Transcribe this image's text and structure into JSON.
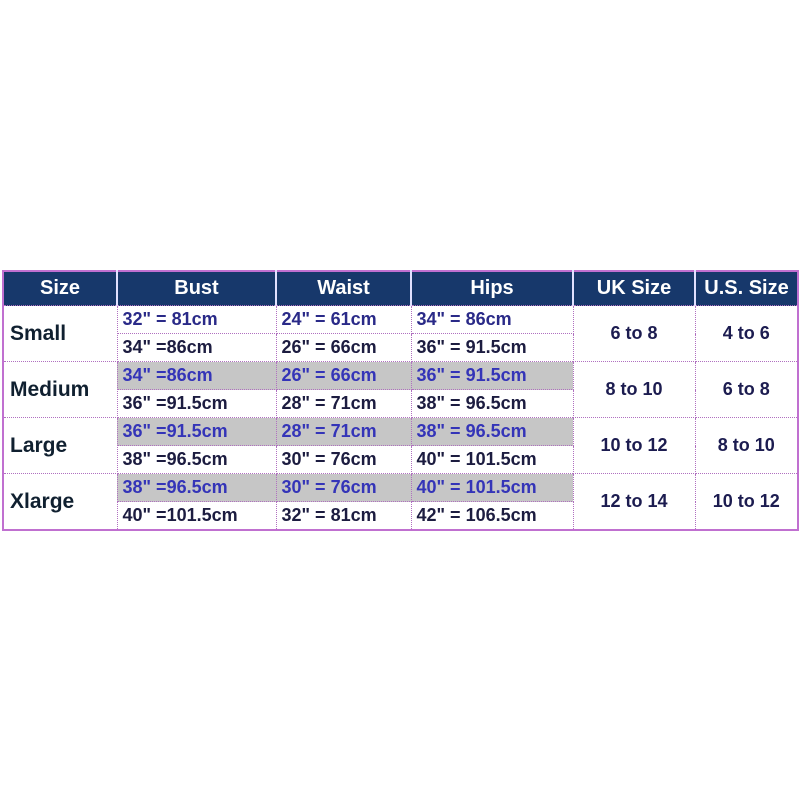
{
  "headers": [
    "Size",
    "Bust",
    "Waist",
    "Hips",
    "UK Size",
    "U.S. Size"
  ],
  "rows": [
    {
      "size": "Small",
      "bust": [
        "32\" = 81cm",
        "34\" =86cm"
      ],
      "waist": [
        "24\" = 61cm",
        "26\" = 66cm"
      ],
      "hips": [
        "34\" = 86cm",
        "36\" = 91.5cm"
      ],
      "uk": "6 to 8",
      "us": "4 to 6"
    },
    {
      "size": "Medium",
      "bust": [
        "34\" =86cm",
        "36\" =91.5cm"
      ],
      "waist": [
        "26\" = 66cm",
        "28\"  = 71cm"
      ],
      "hips": [
        "36\" = 91.5cm",
        "38\" = 96.5cm"
      ],
      "uk": "8 to 10",
      "us": "6 to 8"
    },
    {
      "size": "Large",
      "bust": [
        "36\" =91.5cm",
        "38\" =96.5cm"
      ],
      "waist": [
        "28\" = 71cm",
        "30\" = 76cm"
      ],
      "hips": [
        "38\" = 96.5cm",
        "40\" = 101.5cm"
      ],
      "uk": "10 to 12",
      "us": "8 to 10"
    },
    {
      "size": "Xlarge",
      "bust": [
        "38\" =96.5cm",
        "40\" =101.5cm"
      ],
      "waist": [
        "30\" = 76cm",
        "32\" = 81cm"
      ],
      "hips": [
        "40\" = 101.5cm",
        "42\" = 106.5cm"
      ],
      "uk": "12 to 14",
      "us": "10 to 12"
    }
  ],
  "colors": {
    "header_bg": "#17386b",
    "highlight_bg": "#c6c6c6",
    "border": "#c070d0"
  }
}
